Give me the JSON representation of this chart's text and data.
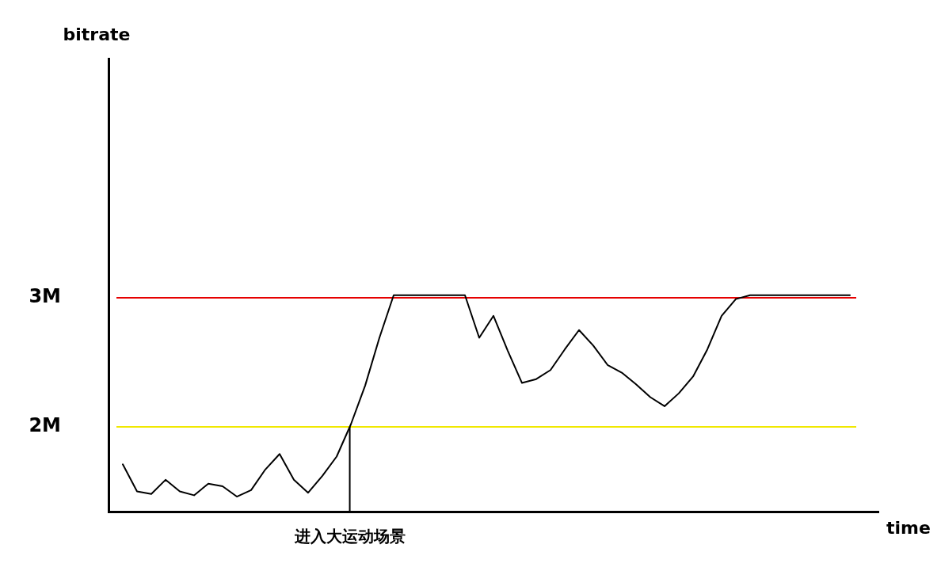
{
  "chart_data": {
    "type": "line",
    "xlabel": "time",
    "ylabel": "bitrate",
    "categories": [
      null,
      null,
      null,
      null,
      null,
      null,
      null,
      null,
      null,
      null,
      null,
      null,
      null,
      null,
      null,
      null,
      null,
      null,
      null,
      null,
      null,
      null,
      null,
      null,
      null,
      null,
      null,
      null,
      null,
      null,
      null,
      null,
      null,
      null,
      null,
      null,
      null,
      null,
      null,
      null,
      null,
      null,
      null,
      null,
      null,
      null,
      null,
      null,
      null,
      null,
      null,
      null
    ],
    "series": [
      {
        "color": "#000000",
        "values": [
          1.71,
          1.5,
          1.48,
          1.59,
          1.5,
          1.47,
          1.56,
          1.54,
          1.46,
          1.51,
          1.67,
          1.79,
          1.59,
          1.49,
          1.62,
          1.77,
          2.02,
          2.32,
          2.69,
          3.02,
          3.02,
          3.02,
          3.02,
          3.02,
          3.02,
          2.69,
          2.86,
          2.59,
          2.34,
          2.37,
          2.44,
          2.6,
          2.75,
          2.63,
          2.48,
          2.42,
          2.33,
          2.23,
          2.16,
          2.26,
          2.39,
          2.6,
          2.86,
          2.99,
          3.02,
          3.02,
          3.02,
          3.02,
          3.02,
          3.02,
          3.02,
          3.02
        ]
      }
    ],
    "ylim": [
      1.34,
      4.85
    ],
    "yticks": [
      {
        "value": 2,
        "label": "2M"
      },
      {
        "value": 3,
        "label": "3M"
      }
    ],
    "tick_labels": "y",
    "grid": false,
    "marker": "none",
    "line_style": "solid",
    "ref_lines": [
      {
        "axis": "y",
        "value": 3,
        "color": "#e60000"
      },
      {
        "axis": "y",
        "value": 2,
        "color": "#f0e800"
      }
    ],
    "annotations": [
      {
        "text": "进入大运动场景",
        "y": 2
      }
    ]
  }
}
